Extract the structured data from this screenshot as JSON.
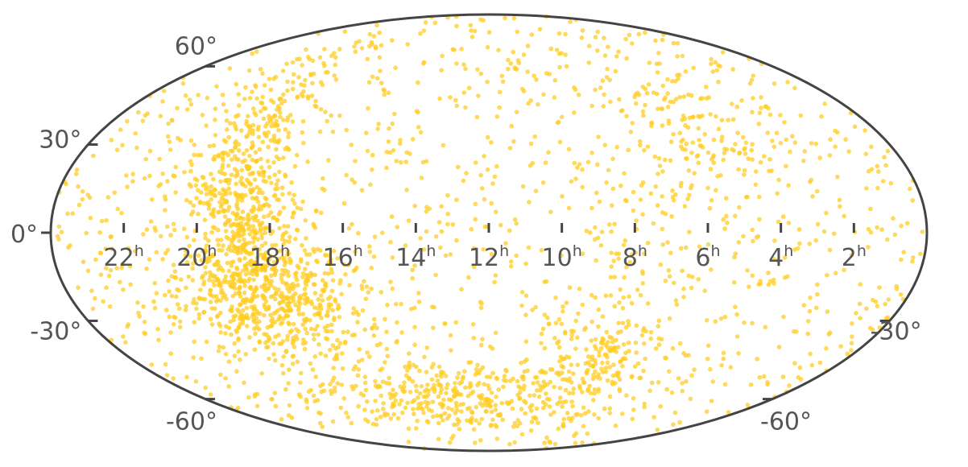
{
  "chart_data": {
    "type": "scatter",
    "projection": "mollweide",
    "title": "",
    "xlabel": "",
    "ylabel": "",
    "x_unit": "hours of right ascension",
    "y_unit": "degrees of declination",
    "xlim": [
      24,
      0
    ],
    "ylim": [
      -90,
      90
    ],
    "grid": false,
    "legend": "none",
    "ra_ticks": [
      {
        "value": 22,
        "text": "22",
        "unit": "h"
      },
      {
        "value": 20,
        "text": "20",
        "unit": "h"
      },
      {
        "value": 18,
        "text": "18",
        "unit": "h"
      },
      {
        "value": 16,
        "text": "16",
        "unit": "h"
      },
      {
        "value": 14,
        "text": "14",
        "unit": "h"
      },
      {
        "value": 12,
        "text": "12",
        "unit": "h"
      },
      {
        "value": 10,
        "text": "10",
        "unit": "h"
      },
      {
        "value": 8,
        "text": "8",
        "unit": "h"
      },
      {
        "value": 6,
        "text": "6",
        "unit": "h"
      },
      {
        "value": 4,
        "text": "4",
        "unit": "h"
      },
      {
        "value": 2,
        "text": "2",
        "unit": "h"
      }
    ],
    "dec_ticks_left": [
      {
        "value": 60,
        "text": "60°"
      },
      {
        "value": 30,
        "text": "30°"
      },
      {
        "value": 0,
        "text": "0°"
      },
      {
        "value": -30,
        "text": "-30°"
      },
      {
        "value": -60,
        "text": "-60°"
      }
    ],
    "dec_ticks_right": [
      {
        "value": -30,
        "text": "-30°"
      },
      {
        "value": -60,
        "text": "-60°"
      }
    ],
    "series": [
      {
        "color": "#ffcc22",
        "opacity": 0.75,
        "approx_point_count": 3000,
        "density_components": [
          {
            "description": "uniform background",
            "weight": 0.42,
            "ra_center": 12,
            "dec_center": 0,
            "ra_spread": 24,
            "dec_spread": 180
          },
          {
            "description": "northern band",
            "weight": 0.1,
            "ra_center": 19.3,
            "dec_center": 25,
            "ra_spread": 0.8,
            "dec_spread": 22
          },
          {
            "description": "equatorial band",
            "weight": 0.1,
            "ra_center": 18.7,
            "dec_center": 2,
            "ra_spread": 0.7,
            "dec_spread": 14
          },
          {
            "description": "southern concentration",
            "weight": 0.17,
            "ra_center": 18.3,
            "dec_center": -23,
            "ra_spread": 1.4,
            "dec_spread": 10
          },
          {
            "description": "southern arc",
            "weight": 0.13,
            "ra_center": 12.5,
            "dec_center": -58,
            "ra_spread": 3.5,
            "dec_spread": 8
          },
          {
            "description": "cluster near 8h",
            "weight": 0.04,
            "ra_center": 8.3,
            "dec_center": -40,
            "ra_spread": 0.8,
            "dec_spread": 8
          },
          {
            "description": "cluster near 5h",
            "weight": 0.04,
            "ra_center": 5.5,
            "dec_center": 35,
            "ra_spread": 1.2,
            "dec_spread": 15
          }
        ]
      }
    ]
  }
}
